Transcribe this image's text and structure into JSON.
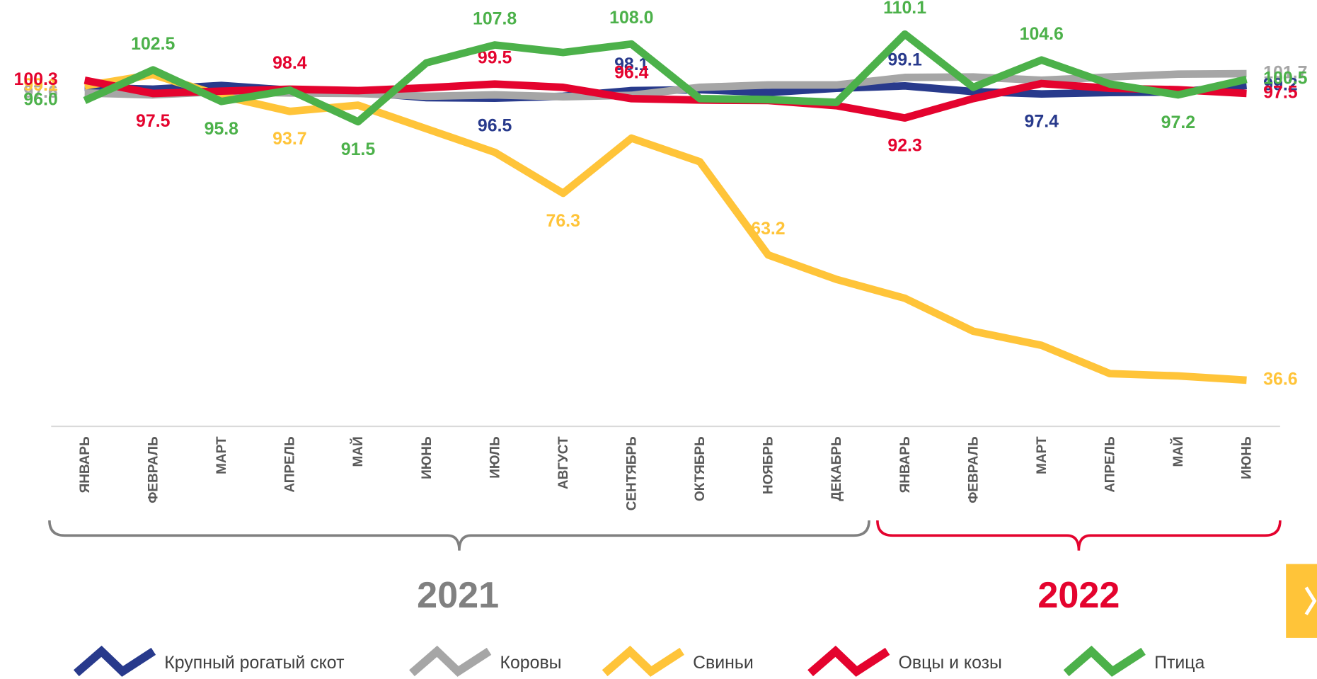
{
  "chart_data": {
    "type": "line",
    "categories": [
      "ЯНВАРЬ",
      "ФЕВРАЛЬ",
      "МАРТ",
      "АПРЕЛЬ",
      "МАЙ",
      "ИЮНЬ",
      "ИЮЛЬ",
      "АВГУСТ",
      "СЕНТЯБРЬ",
      "ОКТЯБРЬ",
      "НОЯБРЬ",
      "ДЕКАБРЬ",
      "ЯНВАРЬ",
      "ФЕВРАЛЬ",
      "МАРТ",
      "АПРЕЛЬ",
      "МАЙ",
      "ИЮНЬ"
    ],
    "year_groups": [
      {
        "label": "2021",
        "color": "#808080"
      },
      {
        "label": "2022",
        "color": "#e4032e"
      }
    ],
    "ylim": [
      30,
      112
    ],
    "series": [
      {
        "name": "Крупный рогатый скот",
        "color": "#283a8c",
        "values": [
          98.8,
          98.4,
          99.2,
          98.2,
          97.8,
          96.6,
          96.5,
          96.9,
          98.1,
          98.3,
          97.7,
          98.6,
          99.1,
          97.9,
          97.4,
          97.7,
          97.8,
          99.2
        ],
        "value_labels": [
          null,
          null,
          null,
          null,
          null,
          null,
          "96.5",
          null,
          "98.1",
          null,
          null,
          null,
          "99.1",
          null,
          "97.4",
          null,
          null,
          "99.2"
        ]
      },
      {
        "name": "Коровы",
        "color": "#a6a6a6",
        "values": [
          97.6,
          97.2,
          97.9,
          97.6,
          97.5,
          96.9,
          97.2,
          96.8,
          97.1,
          98.8,
          99.3,
          99.3,
          100.9,
          101.0,
          100.3,
          101.0,
          101.6,
          101.7
        ],
        "value_labels": [
          "97.6",
          null,
          null,
          null,
          null,
          null,
          null,
          null,
          null,
          null,
          null,
          null,
          null,
          null,
          null,
          null,
          null,
          "101.7"
        ]
      },
      {
        "name": "Свиньи",
        "color": "#ffc439",
        "values": [
          99.1,
          101.5,
          97.0,
          93.7,
          95.0,
          90.0,
          85.0,
          76.3,
          88.0,
          83.0,
          63.2,
          58.0,
          54.0,
          47.0,
          44.0,
          38.0,
          37.5,
          36.6
        ],
        "value_labels": [
          "99.1",
          null,
          null,
          "93.7",
          null,
          null,
          null,
          "76.3",
          null,
          null,
          "63.2",
          null,
          null,
          null,
          null,
          null,
          null,
          "36.6"
        ]
      },
      {
        "name": "Овцы и козы",
        "color": "#e4032e",
        "values": [
          100.3,
          97.5,
          98.0,
          98.4,
          98.1,
          98.7,
          99.5,
          98.8,
          96.4,
          96.1,
          96.0,
          94.9,
          92.3,
          96.4,
          99.6,
          98.6,
          98.3,
          97.5
        ],
        "value_labels": [
          "100.3",
          "97.5",
          null,
          "98.4",
          null,
          null,
          "99.5",
          null,
          "96.4",
          null,
          null,
          null,
          "92.3",
          null,
          null,
          null,
          null,
          "97.5"
        ]
      },
      {
        "name": "Птица",
        "color": "#4cb14a",
        "values": [
          96.0,
          102.5,
          95.8,
          98.2,
          91.5,
          104.0,
          107.8,
          106.2,
          108.0,
          96.4,
          96.2,
          95.6,
          110.1,
          98.8,
          104.6,
          99.5,
          97.2,
          100.5
        ],
        "value_labels": [
          "96.0",
          "102.5",
          "95.8",
          null,
          "91.5",
          null,
          "107.8",
          null,
          "108.0",
          null,
          null,
          null,
          "110.1",
          null,
          "104.6",
          null,
          "97.2",
          "100.5"
        ]
      }
    ]
  }
}
